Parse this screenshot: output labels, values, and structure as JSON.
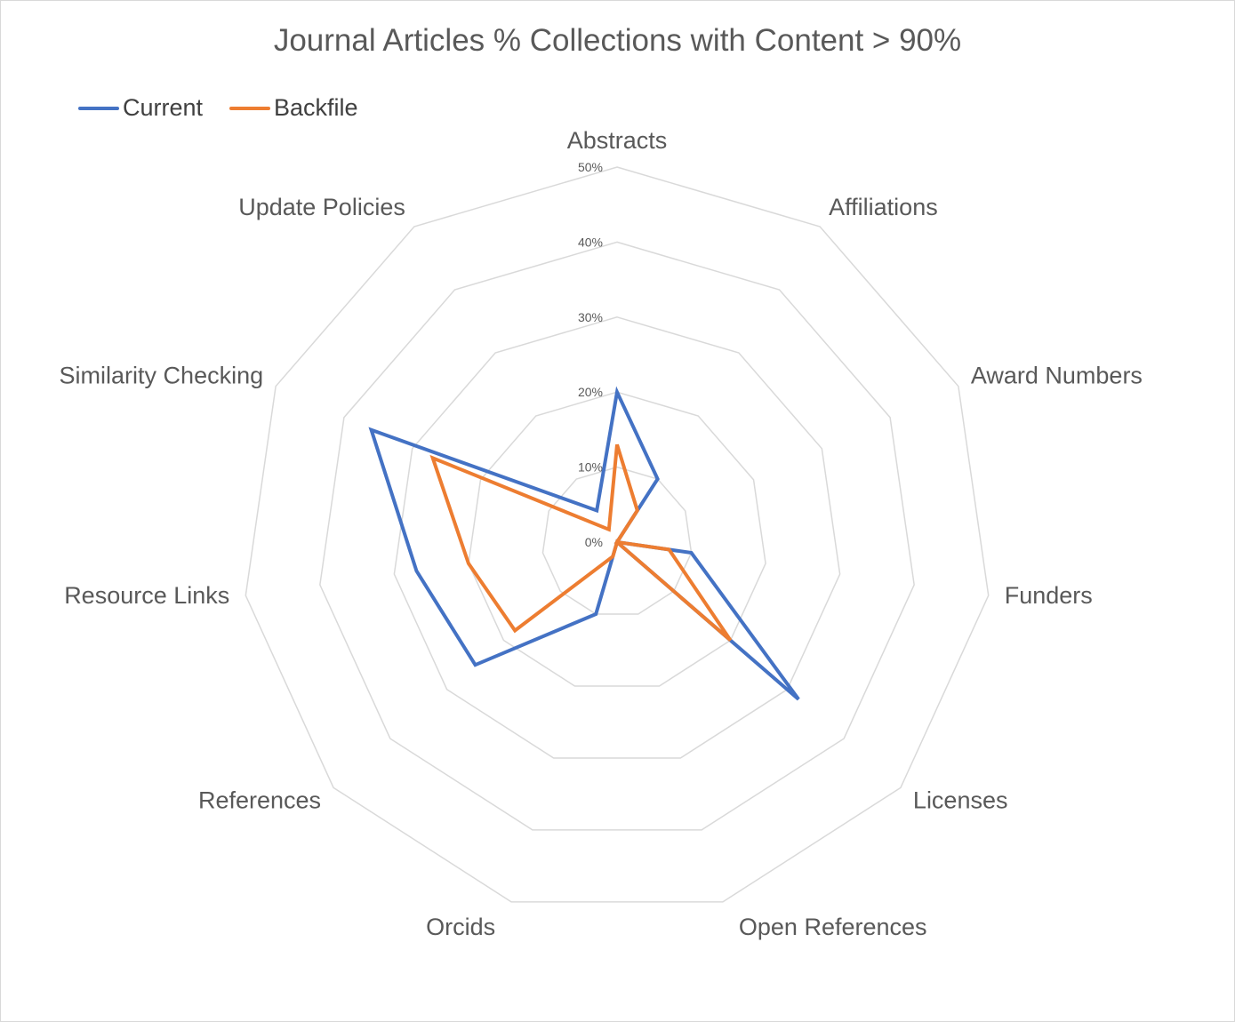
{
  "chart_data": {
    "type": "radar",
    "title": "Journal Articles % Collections with Content > 90%",
    "categories": [
      "Abstracts",
      "Affiliations",
      "Award Numbers",
      "Funders",
      "Licenses",
      "Open References",
      "Orcids",
      "References",
      "Resource Links",
      "Similarity Checking",
      "Update Policies"
    ],
    "series": [
      {
        "name": "Current",
        "color": "#4472c4",
        "values": [
          20,
          10,
          0,
          10,
          32,
          0,
          10,
          25,
          27,
          36,
          5
        ]
      },
      {
        "name": "Backfile",
        "color": "#ed7d31",
        "values": [
          13,
          5,
          0,
          7,
          20,
          0,
          2,
          18,
          20,
          27,
          2
        ]
      }
    ],
    "r_range": [
      0,
      50
    ],
    "ticks": [
      "0%",
      "10%",
      "20%",
      "30%",
      "40%",
      "50%"
    ],
    "legend_position": "top-left",
    "grid": true
  }
}
